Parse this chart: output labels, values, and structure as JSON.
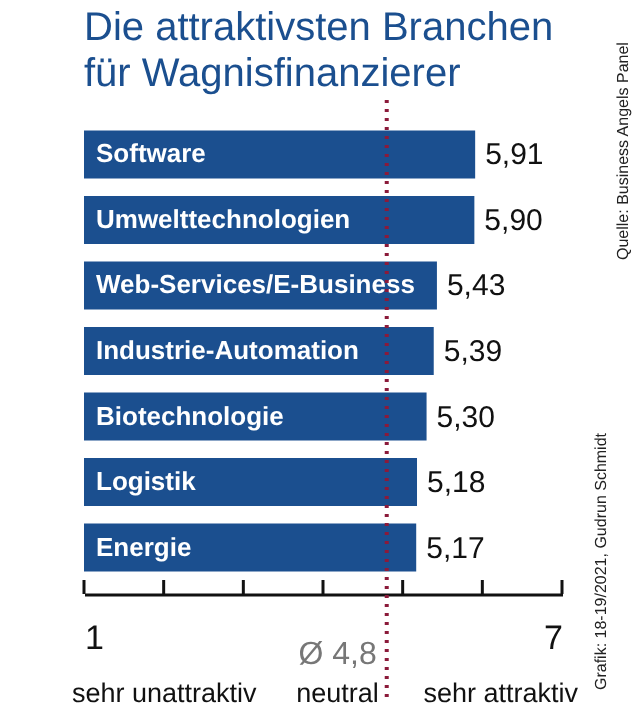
{
  "chart_data": {
    "type": "bar",
    "orientation": "horizontal",
    "title": "Die attraktivsten Branchen für Wagnisfinanzierer",
    "categories": [
      "Software",
      "Umwelttechnologien",
      "Web-Services/E-Business",
      "Industrie-Automation",
      "Biotechnologie",
      "Logistik",
      "Energie"
    ],
    "values": [
      5.91,
      5.9,
      5.43,
      5.39,
      5.3,
      5.18,
      5.17
    ],
    "value_labels": [
      "5,91",
      "5,90",
      "5,43",
      "5,39",
      "5,30",
      "5,18",
      "5,17"
    ],
    "color": "#1b4f8f",
    "xlim": [
      1,
      7
    ],
    "xticks": [
      1,
      {
        "value": 2,
        "label": null
      },
      {
        "value": 3,
        "label": null
      },
      {
        "value": 4,
        "label": null
      },
      {
        "value": 5,
        "label": null
      },
      {
        "value": 6,
        "label": null
      },
      7
    ],
    "ref_lines": [
      {
        "axis": "x",
        "value": 4.8,
        "label": "Ø 4,8",
        "color": "#8b1a3a",
        "line_style": "dotted"
      }
    ],
    "annotations": [
      "sehr unattraktiv",
      "neutral",
      "sehr attraktiv",
      "Grafik: 18-19/2021, Gudrun Schmidt",
      "Quelle: Business Angels Panel"
    ],
    "grid": false
  }
}
